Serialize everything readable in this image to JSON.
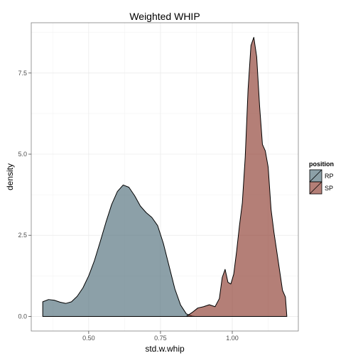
{
  "chart_data": {
    "type": "area",
    "title": "Weighted WHIP",
    "xlabel": "std.w.whip",
    "ylabel": "density",
    "xlim": [
      0.3,
      1.23
    ],
    "ylim": [
      -0.45,
      9.05
    ],
    "x_ticks": [
      "0.50",
      "0.75",
      "1.00"
    ],
    "x_tick_values": [
      0.5,
      0.75,
      1.0
    ],
    "y_ticks": [
      "0.0",
      "2.5",
      "5.0",
      "7.5"
    ],
    "y_tick_values": [
      0.0,
      2.5,
      5.0,
      7.5
    ],
    "grid": true,
    "legend": {
      "title": "position",
      "placement": "right"
    },
    "series": [
      {
        "name": "RP",
        "color": "#4e6d7a",
        "points": [
          [
            0.34,
            0.45
          ],
          [
            0.36,
            0.52
          ],
          [
            0.38,
            0.5
          ],
          [
            0.4,
            0.44
          ],
          [
            0.42,
            0.4
          ],
          [
            0.44,
            0.45
          ],
          [
            0.46,
            0.62
          ],
          [
            0.48,
            0.88
          ],
          [
            0.5,
            1.25
          ],
          [
            0.52,
            1.72
          ],
          [
            0.54,
            2.3
          ],
          [
            0.56,
            2.9
          ],
          [
            0.58,
            3.45
          ],
          [
            0.6,
            3.85
          ],
          [
            0.62,
            4.05
          ],
          [
            0.64,
            3.98
          ],
          [
            0.66,
            3.72
          ],
          [
            0.68,
            3.4
          ],
          [
            0.7,
            3.2
          ],
          [
            0.72,
            3.05
          ],
          [
            0.74,
            2.8
          ],
          [
            0.76,
            2.25
          ],
          [
            0.78,
            1.55
          ],
          [
            0.8,
            0.85
          ],
          [
            0.82,
            0.35
          ],
          [
            0.84,
            0.08
          ],
          [
            0.86,
            0.01
          ],
          [
            0.87,
            0.0
          ]
        ]
      },
      {
        "name": "SP",
        "color": "#8c3a2e",
        "points": [
          [
            0.84,
            0.0
          ],
          [
            0.86,
            0.12
          ],
          [
            0.88,
            0.26
          ],
          [
            0.9,
            0.3
          ],
          [
            0.92,
            0.36
          ],
          [
            0.94,
            0.3
          ],
          [
            0.955,
            0.55
          ],
          [
            0.965,
            1.2
          ],
          [
            0.975,
            1.45
          ],
          [
            0.985,
            1.05
          ],
          [
            0.995,
            1.0
          ],
          [
            1.005,
            1.3
          ],
          [
            1.015,
            2.0
          ],
          [
            1.025,
            2.8
          ],
          [
            1.035,
            3.5
          ],
          [
            1.045,
            4.9
          ],
          [
            1.055,
            7.0
          ],
          [
            1.065,
            8.35
          ],
          [
            1.075,
            8.6
          ],
          [
            1.085,
            8.0
          ],
          [
            1.095,
            6.5
          ],
          [
            1.105,
            5.3
          ],
          [
            1.115,
            5.1
          ],
          [
            1.125,
            4.6
          ],
          [
            1.135,
            3.3
          ],
          [
            1.145,
            2.6
          ],
          [
            1.155,
            2.0
          ],
          [
            1.165,
            1.4
          ],
          [
            1.175,
            0.8
          ],
          [
            1.185,
            0.6
          ],
          [
            1.19,
            0.0
          ]
        ]
      }
    ]
  }
}
